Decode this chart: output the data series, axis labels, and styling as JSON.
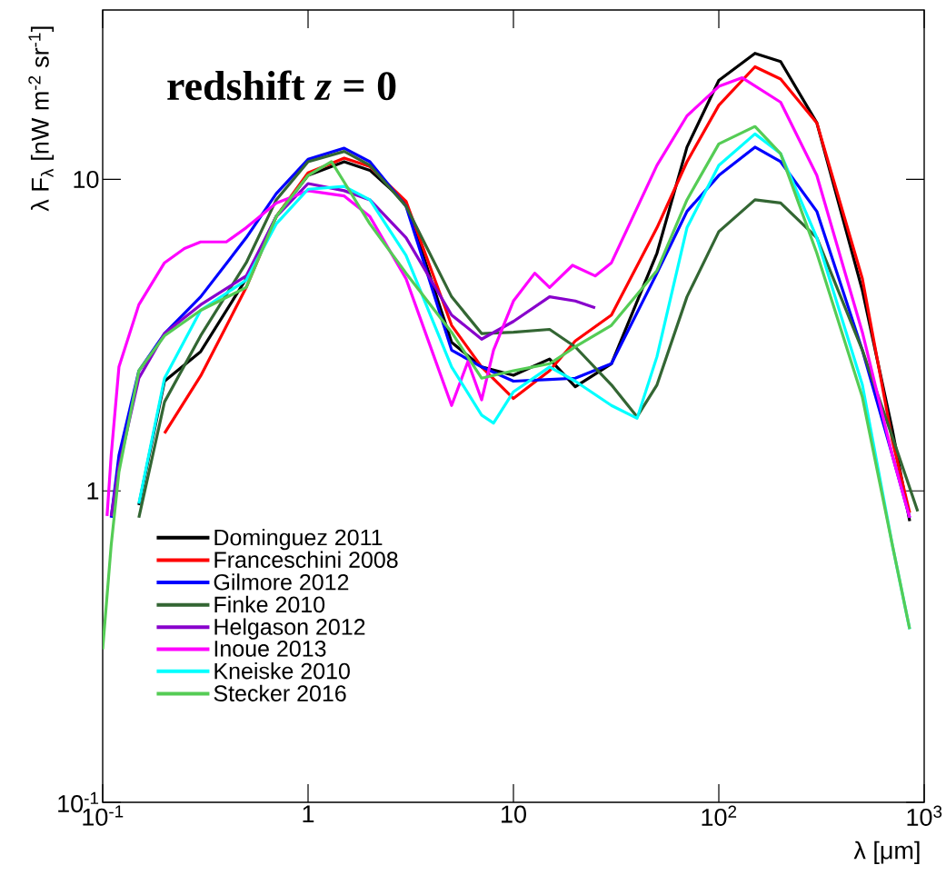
{
  "chart_data": {
    "type": "line",
    "title": "redshift *z* = 0",
    "xlabel": "λ [μm]",
    "ylabel": "λ F$_{λ}$ [nW m$^{-2}$ sr$^{-1}$]",
    "log": "xy",
    "xlim": [
      0.1,
      1000
    ],
    "ylim": [
      0.1,
      35
    ],
    "xticks": [
      {
        "value": 0.1,
        "label": "10$^{-1}$"
      },
      1,
      10,
      {
        "value": 100,
        "label": "10$^{2}$"
      },
      {
        "value": 1000,
        "label": "10$^{3}$"
      }
    ],
    "yticks": [
      {
        "value": 0.1,
        "label": "10$^{-1}$"
      },
      1,
      10
    ],
    "legend": "bottom left",
    "marker": "none",
    "line_style": "solid",
    "series": [
      {
        "name": "Dominguez 2011",
        "color": "#000000",
        "x": [
          0.15,
          0.2,
          0.3,
          0.5,
          0.7,
          1,
          1.5,
          2,
          3,
          5,
          7,
          10,
          15,
          20,
          30,
          50,
          70,
          100,
          150,
          200,
          300,
          500,
          700,
          850
        ],
        "values": [
          0.9,
          2.25,
          2.8,
          4.8,
          7.6,
          10.3,
          11.4,
          10.7,
          8.4,
          3.0,
          2.5,
          2.35,
          2.65,
          2.16,
          2.56,
          5.8,
          12.7,
          20.8,
          25.4,
          23.9,
          15.2,
          4.4,
          1.57,
          0.8
        ]
      },
      {
        "name": "Franceschini 2008",
        "color": "#ff0000",
        "x": [
          0.2,
          0.3,
          0.5,
          0.7,
          1,
          1.5,
          2,
          3,
          5,
          7,
          10,
          15,
          20,
          30,
          50,
          70,
          100,
          150,
          200,
          300,
          500,
          700,
          850
        ],
        "values": [
          1.53,
          2.34,
          4.5,
          7.6,
          10.5,
          11.7,
          11.0,
          8.5,
          3.4,
          2.5,
          1.98,
          2.43,
          3.03,
          3.67,
          7.0,
          11.4,
          17.3,
          23.0,
          21.0,
          15.2,
          4.8,
          1.45,
          0.85
        ]
      },
      {
        "name": "Gilmore 2012",
        "color": "#0000ff",
        "x": [
          0.11,
          0.12,
          0.15,
          0.2,
          0.3,
          0.5,
          0.7,
          1,
          1.5,
          2,
          3,
          5,
          7,
          10,
          15,
          20,
          30,
          50,
          70,
          100,
          150,
          200,
          300,
          500,
          700,
          850
        ],
        "values": [
          0.82,
          1.3,
          2.43,
          3.2,
          4.2,
          6.5,
          9.0,
          11.6,
          12.6,
          11.4,
          8.2,
          2.83,
          2.5,
          2.25,
          2.28,
          2.3,
          2.56,
          5.0,
          7.9,
          10.3,
          12.7,
          11.4,
          7.9,
          2.83,
          1.3,
          0.82
        ]
      },
      {
        "name": "Finke 2010",
        "color": "#336633",
        "x": [
          0.15,
          0.2,
          0.3,
          0.5,
          0.7,
          1,
          1.5,
          2,
          3,
          5,
          7,
          10,
          15,
          20,
          30,
          40,
          50,
          70,
          100,
          150,
          200,
          300,
          500,
          700,
          930
        ],
        "values": [
          0.82,
          1.93,
          3.15,
          5.4,
          8.6,
          11.4,
          12.3,
          11.1,
          8.2,
          4.2,
          3.2,
          3.23,
          3.3,
          2.9,
          2.19,
          1.73,
          2.19,
          4.2,
          6.8,
          8.6,
          8.4,
          6.5,
          2.83,
          1.49,
          0.86
        ]
      },
      {
        "name": "Helgason 2012",
        "color": "#8800cc",
        "x": [
          0.11,
          0.12,
          0.15,
          0.2,
          0.3,
          0.5,
          0.7,
          1,
          1.5,
          2,
          3,
          5,
          7,
          10,
          15,
          20,
          25
        ],
        "values": [
          0.83,
          1.2,
          2.3,
          3.2,
          3.96,
          4.9,
          7.6,
          9.7,
          9.2,
          8.6,
          6.5,
          3.67,
          3.07,
          3.5,
          4.2,
          4.07,
          3.87
        ]
      },
      {
        "name": "Inoue 2013",
        "color": "#ff00ff",
        "x": [
          0.105,
          0.11,
          0.12,
          0.15,
          0.2,
          0.25,
          0.3,
          0.4,
          0.5,
          0.7,
          1,
          1.5,
          2,
          3,
          4,
          5,
          6,
          7,
          8,
          10,
          12.7,
          15,
          19.4,
          25,
          30,
          50,
          70,
          100,
          130,
          200,
          300,
          500,
          700,
          850
        ],
        "values": [
          0.83,
          1.3,
          2.5,
          3.96,
          5.4,
          6.0,
          6.3,
          6.3,
          7.0,
          8.4,
          9.2,
          8.85,
          7.6,
          4.8,
          2.83,
          1.88,
          2.6,
          1.96,
          2.83,
          4.07,
          5.0,
          4.5,
          5.3,
          4.9,
          5.4,
          11.1,
          16.0,
          19.9,
          21.2,
          17.7,
          10.3,
          3.23,
          1.3,
          0.82
        ]
      },
      {
        "name": "Kneiske 2010",
        "color": "#00ffff",
        "x": [
          0.15,
          0.2,
          0.3,
          0.5,
          0.7,
          1,
          1.5,
          2,
          3,
          5,
          7,
          8,
          10,
          15,
          20,
          30,
          40,
          50,
          70,
          100,
          150,
          200,
          300,
          500,
          700,
          850
        ],
        "values": [
          0.91,
          2.3,
          3.8,
          4.75,
          7.2,
          9.3,
          9.5,
          8.6,
          5.7,
          2.5,
          1.75,
          1.65,
          2.08,
          2.5,
          2.25,
          1.88,
          1.71,
          2.7,
          7.0,
          11.1,
          14.0,
          12.1,
          6.5,
          2.19,
          0.67,
          0.36
        ]
      },
      {
        "name": "Stecker 2016",
        "color": "#55cc55",
        "x": [
          0.1,
          0.11,
          0.12,
          0.15,
          0.2,
          0.3,
          0.5,
          0.7,
          1,
          1.3,
          1.5,
          2,
          3,
          5,
          7,
          10,
          15,
          20,
          30,
          50,
          70,
          100,
          150,
          200,
          300,
          500,
          700,
          850
        ],
        "values": [
          0.31,
          0.67,
          1.15,
          2.43,
          3.15,
          3.8,
          4.5,
          7.6,
          10.3,
          11.4,
          9.8,
          7.2,
          5.0,
          3.23,
          2.3,
          2.43,
          2.56,
          2.9,
          3.4,
          5.1,
          8.6,
          13.0,
          14.8,
          12.1,
          5.8,
          2.0,
          0.67,
          0.36
        ]
      }
    ]
  }
}
